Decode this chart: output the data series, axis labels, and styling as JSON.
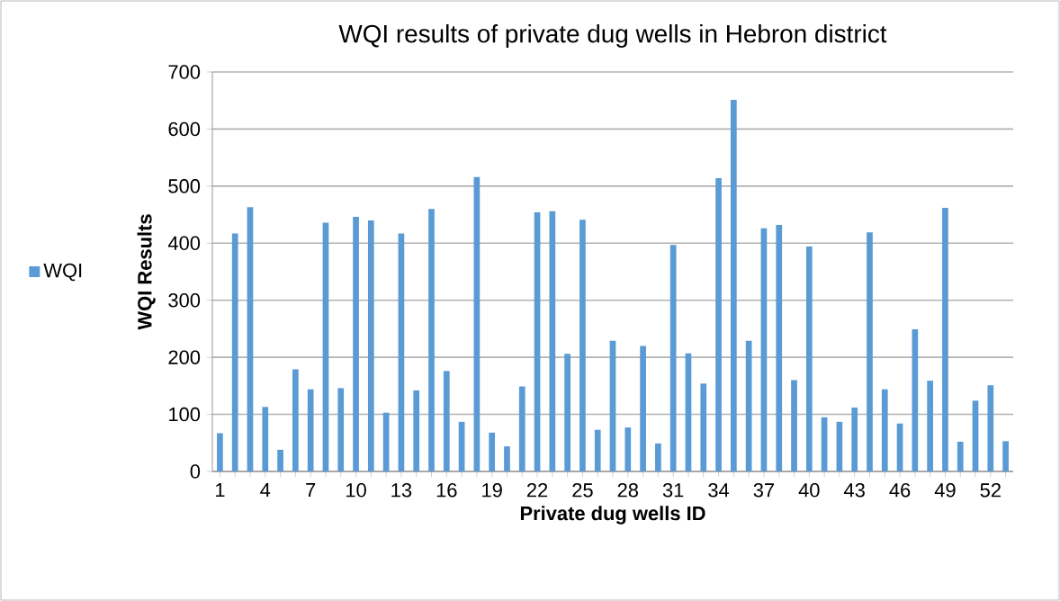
{
  "chart_data": {
    "type": "bar",
    "title": "WQI results of private dug wells in Hebron district",
    "xlabel": "Private dug wells ID",
    "ylabel": "WQI Results",
    "categories": [
      "1",
      null,
      null,
      "4",
      null,
      null,
      "7",
      null,
      null,
      "10",
      null,
      null,
      "13",
      null,
      null,
      "16",
      null,
      null,
      "19",
      null,
      null,
      "22",
      null,
      null,
      "25",
      null,
      null,
      "28",
      null,
      null,
      "31",
      null,
      null,
      "34",
      null,
      null,
      "37",
      null,
      null,
      "40",
      null,
      null,
      "43",
      null,
      null,
      "46",
      null,
      null,
      "49",
      null,
      null,
      "52",
      null
    ],
    "series": [
      {
        "name": "WQI",
        "color": "#5b9bd5",
        "values": [
          67,
          417,
          463,
          113,
          38,
          179,
          144,
          436,
          146,
          446,
          440,
          103,
          417,
          142,
          460,
          176,
          87,
          516,
          68,
          44,
          149,
          454,
          456,
          206,
          441,
          73,
          229,
          77,
          220,
          49,
          397,
          207,
          154,
          514,
          651,
          229,
          426,
          432,
          160,
          394,
          95,
          87,
          112,
          419,
          144,
          84,
          249,
          159,
          462,
          52,
          124,
          151,
          53
        ]
      }
    ],
    "ylim": [
      0,
      700
    ],
    "yticks": [
      0,
      100,
      200,
      300,
      400,
      500,
      600,
      700
    ],
    "grid": "y",
    "legend": "left"
  }
}
